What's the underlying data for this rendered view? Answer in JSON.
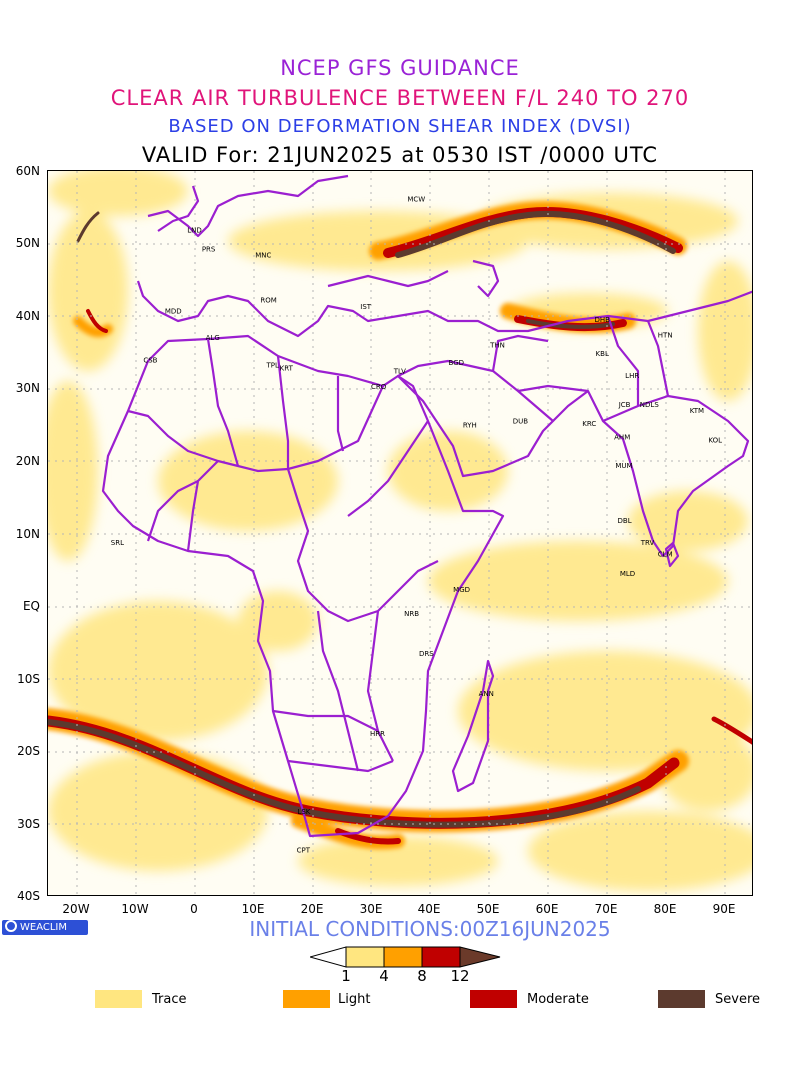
{
  "titles": {
    "line1": "NCEP GFS GUIDANCE",
    "line2": "CLEAR AIR TURBULENCE BETWEEN F/L 240 TO 270",
    "line3": "BASED ON DEFORMATION SHEAR INDEX (DVSI)",
    "line4": "VALID For: 21JUN2025 at 0530 IST /0000 UTC"
  },
  "axes": {
    "lat_labels": [
      "60N",
      "50N",
      "40N",
      "30N",
      "20N",
      "10N",
      "EQ",
      "10S",
      "20S",
      "30S",
      "40S"
    ],
    "lon_labels": [
      "20W",
      "10W",
      "0",
      "10E",
      "20E",
      "30E",
      "40E",
      "50E",
      "60E",
      "70E",
      "80E",
      "90E"
    ],
    "lon_range": [
      -25,
      95
    ],
    "lat_range": [
      -40,
      60
    ]
  },
  "cities": [
    {
      "code": "MCW",
      "lon": 37.6,
      "lat": 55.8
    },
    {
      "code": "LND",
      "lon": -0.1,
      "lat": 51.5
    },
    {
      "code": "PRS",
      "lon": 2.3,
      "lat": 48.9
    },
    {
      "code": "MNC",
      "lon": 11.6,
      "lat": 48.1
    },
    {
      "code": "ROM",
      "lon": 12.5,
      "lat": 41.9
    },
    {
      "code": "IST",
      "lon": 29.0,
      "lat": 41.0
    },
    {
      "code": "MDD",
      "lon": -3.7,
      "lat": 40.4
    },
    {
      "code": "DHB",
      "lon": 69.2,
      "lat": 39.2
    },
    {
      "code": "HTN",
      "lon": 79.9,
      "lat": 37.1
    },
    {
      "code": "ALG",
      "lon": 3.0,
      "lat": 36.7
    },
    {
      "code": "THN",
      "lon": 51.4,
      "lat": 35.7
    },
    {
      "code": "KBL",
      "lon": 69.2,
      "lat": 34.5
    },
    {
      "code": "CSB",
      "lon": -7.6,
      "lat": 33.6
    },
    {
      "code": "BGD",
      "lon": 44.4,
      "lat": 33.3
    },
    {
      "code": "TPL",
      "lon": 13.2,
      "lat": 32.9
    },
    {
      "code": "KRT",
      "lon": 15.5,
      "lat": 32.5
    },
    {
      "code": "TLV",
      "lon": 34.8,
      "lat": 32.1
    },
    {
      "code": "CRO",
      "lon": 31.2,
      "lat": 30.0
    },
    {
      "code": "LHR",
      "lon": 74.3,
      "lat": 31.5
    },
    {
      "code": "JCB",
      "lon": 73.0,
      "lat": 27.5
    },
    {
      "code": "NDLS",
      "lon": 77.2,
      "lat": 27.5
    },
    {
      "code": "KTM",
      "lon": 85.3,
      "lat": 26.7
    },
    {
      "code": "RYH",
      "lon": 46.7,
      "lat": 24.7
    },
    {
      "code": "DUB",
      "lon": 55.3,
      "lat": 25.2
    },
    {
      "code": "KRC",
      "lon": 67.0,
      "lat": 24.9
    },
    {
      "code": "AHM",
      "lon": 72.6,
      "lat": 23.0
    },
    {
      "code": "KOL",
      "lon": 88.4,
      "lat": 22.6
    },
    {
      "code": "MUM",
      "lon": 72.9,
      "lat": 19.1
    },
    {
      "code": "DBL",
      "lon": 73.0,
      "lat": 11.5
    },
    {
      "code": "TRV",
      "lon": 76.9,
      "lat": 8.5
    },
    {
      "code": "CLM",
      "lon": 79.9,
      "lat": 6.9
    },
    {
      "code": "SRL",
      "lon": -13.2,
      "lat": 8.5
    },
    {
      "code": "MGD",
      "lon": 45.3,
      "lat": 2.0
    },
    {
      "code": "MLD",
      "lon": 73.5,
      "lat": 4.2
    },
    {
      "code": "NRB",
      "lon": 36.8,
      "lat": -1.3
    },
    {
      "code": "DRS",
      "lon": 39.3,
      "lat": -6.8
    },
    {
      "code": "ANN",
      "lon": 49.5,
      "lat": -12.3
    },
    {
      "code": "HRR",
      "lon": 31.0,
      "lat": -17.8
    },
    {
      "code": "LSK",
      "lon": 18.5,
      "lat": -28.6
    },
    {
      "code": "CPT",
      "lon": 18.4,
      "lat": -33.9
    }
  ],
  "footer": {
    "logo": "WEACLIM",
    "initial_conditions": "INITIAL CONDITIONS:00Z16JUN2025"
  },
  "colorbar": {
    "labels": [
      "1",
      "4",
      "8",
      "12"
    ],
    "colors": [
      "#ffe680",
      "#ffa000",
      "#c00000",
      "#6b3a2a"
    ]
  },
  "legend": [
    {
      "label": "Trace",
      "color": "#ffe680"
    },
    {
      "label": "Light",
      "color": "#ffa000"
    },
    {
      "label": "Moderate",
      "color": "#c00000"
    },
    {
      "label": "Severe",
      "color": "#5c3a2e"
    }
  ]
}
